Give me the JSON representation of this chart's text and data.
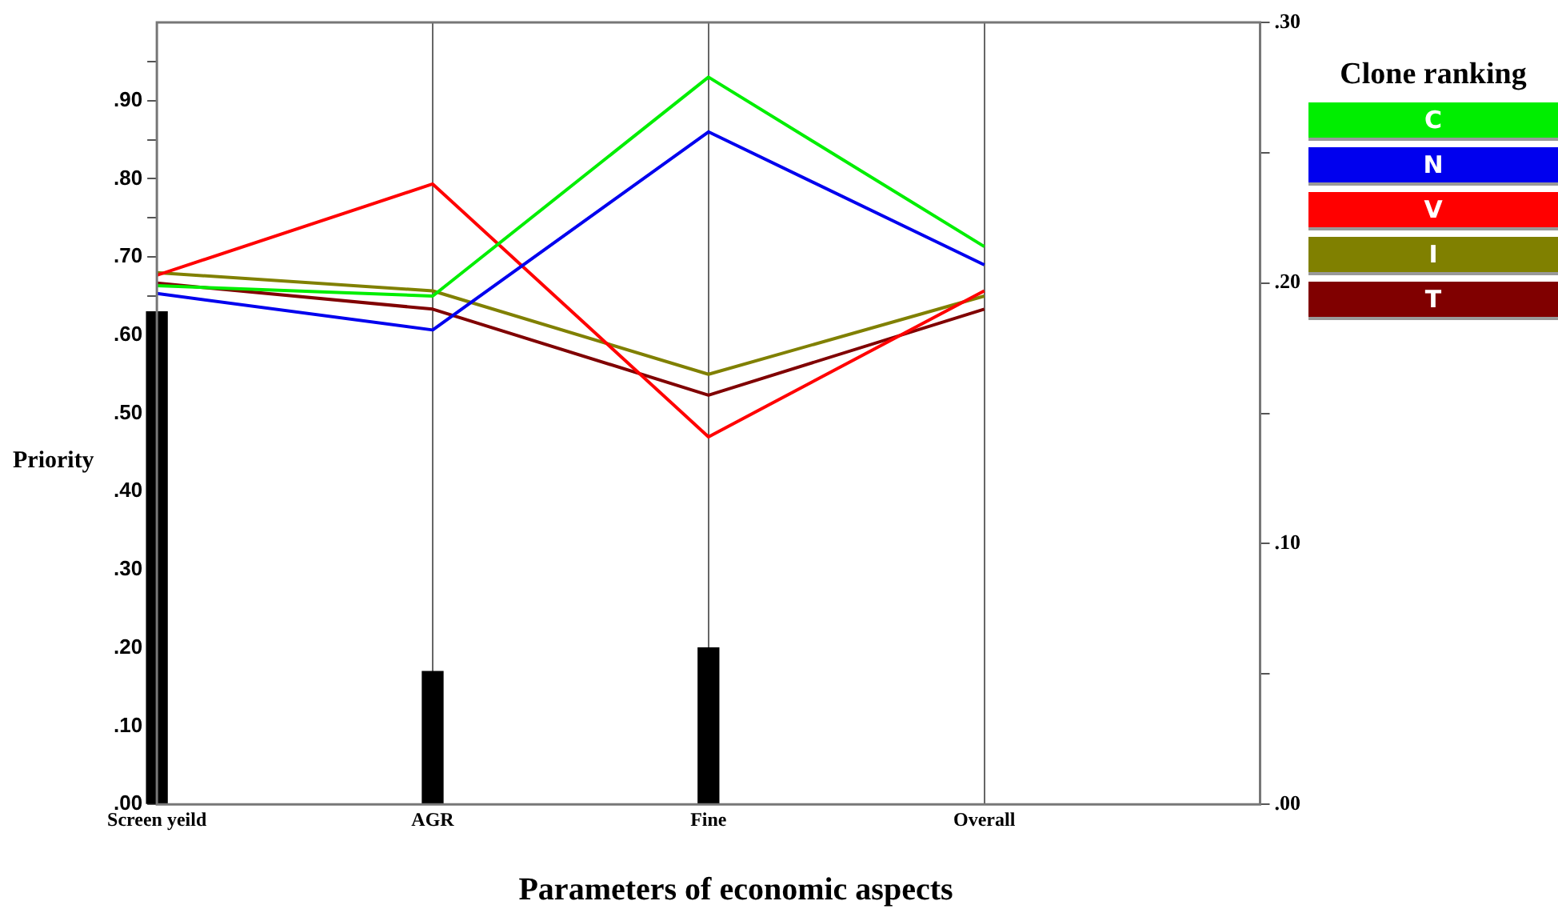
{
  "chart_data": {
    "type": "line",
    "xlabel": "Parameters of economic aspects",
    "ylabel": "Priority",
    "legend_title": "Clone ranking",
    "categories": [
      "Screen yeild",
      "AGR",
      "Fine",
      "Overall"
    ],
    "series": [
      {
        "type": "bar",
        "color": "#000000",
        "values": [
          0.63,
          0.17,
          0.2,
          null
        ]
      },
      {
        "name": "C",
        "color": "#00ee00",
        "axis": "y2",
        "values": [
          0.199,
          0.195,
          0.279,
          0.214
        ]
      },
      {
        "name": "N",
        "color": "#0000ee",
        "axis": "y2",
        "values": [
          0.196,
          0.182,
          0.258,
          0.207
        ]
      },
      {
        "name": "V",
        "color": "#ff0000",
        "axis": "y2",
        "values": [
          0.203,
          0.238,
          0.141,
          0.197
        ]
      },
      {
        "name": "I",
        "color": "#808000",
        "axis": "y2",
        "values": [
          0.204,
          0.197,
          0.165,
          0.195
        ]
      },
      {
        "name": "T",
        "color": "#800000",
        "axis": "y2",
        "values": [
          0.2,
          0.19,
          0.157,
          0.19
        ]
      }
    ],
    "ylim": [
      0,
      1
    ],
    "yticks": [
      {
        "value": 0,
        "label": ".00"
      },
      {
        "value": 0.05,
        "label": null
      },
      {
        "value": 0.1,
        "label": ".10"
      },
      {
        "value": 0.15,
        "label": null
      },
      {
        "value": 0.2,
        "label": ".20"
      },
      {
        "value": 0.25,
        "label": null
      },
      {
        "value": 0.3,
        "label": ".30"
      },
      {
        "value": 0.35,
        "label": null
      },
      {
        "value": 0.4,
        "label": ".40"
      },
      {
        "value": 0.45,
        "label": null
      },
      {
        "value": 0.5,
        "label": ".50"
      },
      {
        "value": 0.55,
        "label": null
      },
      {
        "value": 0.6,
        "label": ".60"
      },
      {
        "value": 0.65,
        "label": null
      },
      {
        "value": 0.7,
        "label": ".70"
      },
      {
        "value": 0.75,
        "label": null
      },
      {
        "value": 0.8,
        "label": ".80"
      },
      {
        "value": 0.85,
        "label": null
      },
      {
        "value": 0.9,
        "label": ".90"
      },
      {
        "value": 0.95,
        "label": null
      }
    ],
    "y2lim": [
      0,
      0.3
    ],
    "y2ticks": [
      {
        "value": 0,
        "label": ".00"
      },
      {
        "value": 0.05,
        "label": null
      },
      {
        "value": 0.1,
        "label": ".10"
      },
      {
        "value": 0.15,
        "label": null
      },
      {
        "value": 0.2,
        "label": ".20"
      },
      {
        "value": 0.25,
        "label": null
      },
      {
        "value": 0.3,
        "label": ".30"
      }
    ],
    "grid": "x",
    "legend": "right",
    "marker": "none"
  }
}
